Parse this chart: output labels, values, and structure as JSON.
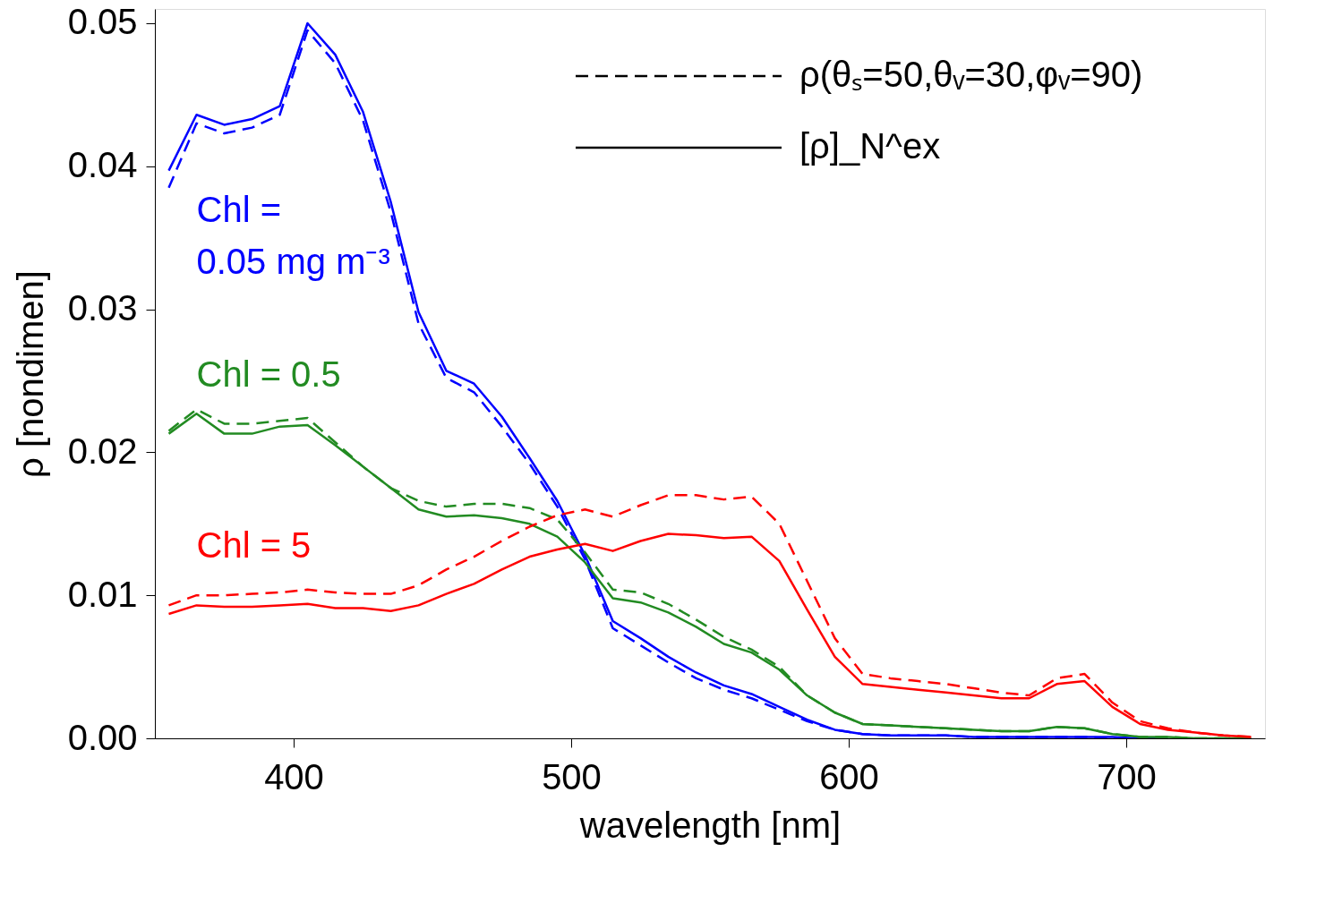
{
  "chart_data": {
    "type": "line",
    "xlabel": "wavelength [nm]",
    "ylabel": "ρ [nondimen]",
    "x": [
      355,
      365,
      375,
      385,
      395,
      405,
      415,
      425,
      435,
      445,
      455,
      465,
      475,
      485,
      495,
      505,
      515,
      525,
      535,
      545,
      555,
      565,
      575,
      585,
      595,
      605,
      615,
      625,
      635,
      645,
      655,
      665,
      675,
      685,
      695,
      705,
      715,
      725,
      735,
      745
    ],
    "series": [
      {
        "color": "#0000ff",
        "line_style": "dashed",
        "values": [
          0.0385,
          0.043,
          0.0423,
          0.0427,
          0.0436,
          0.0495,
          0.0472,
          0.0432,
          0.0368,
          0.029,
          0.0252,
          0.0242,
          0.0218,
          0.0192,
          0.0162,
          0.0125,
          0.0077,
          0.0065,
          0.0053,
          0.0042,
          0.0034,
          0.0028,
          0.002,
          0.0012,
          0.0006,
          0.0003,
          0.0002,
          0.0002,
          0.0002,
          0.0001,
          0.0001,
          0.0001,
          0.0001,
          0.0001,
          0.0,
          0.0,
          0.0,
          null,
          null,
          null
        ]
      },
      {
        "name": "Chl =\n0.05 mg m⁻³",
        "color": "#0000ff",
        "line_style": "solid",
        "values": [
          0.0397,
          0.0436,
          0.0429,
          0.0433,
          0.0442,
          0.05,
          0.0478,
          0.0438,
          0.0375,
          0.0298,
          0.0257,
          0.0248,
          0.0225,
          0.0196,
          0.0166,
          0.0128,
          0.0082,
          0.007,
          0.0057,
          0.0046,
          0.0037,
          0.0031,
          0.0022,
          0.0013,
          0.0006,
          0.0003,
          0.0002,
          0.0002,
          0.0002,
          0.0001,
          0.0001,
          0.0001,
          0.0001,
          0.0001,
          0.0001,
          0.0,
          0.0,
          null,
          null,
          null
        ]
      },
      {
        "color": "#228b22",
        "line_style": "dashed",
        "values": [
          0.0215,
          0.023,
          0.022,
          0.022,
          0.0222,
          0.0224,
          0.0207,
          0.019,
          0.0175,
          0.0166,
          0.0162,
          0.0164,
          0.0164,
          0.0161,
          0.0153,
          0.013,
          0.0104,
          0.0102,
          0.0094,
          0.0083,
          0.0071,
          0.0062,
          0.005,
          0.003,
          0.0018,
          0.001,
          0.0009,
          0.0008,
          0.0007,
          0.0006,
          0.0005,
          0.0005,
          0.0008,
          0.0007,
          0.0003,
          0.0001,
          0.0001,
          0.0,
          0.0,
          0.0
        ]
      },
      {
        "name": "Chl = 0.5",
        "color": "#228b22",
        "line_style": "solid",
        "values": [
          0.0213,
          0.0227,
          0.0213,
          0.0213,
          0.0218,
          0.0219,
          0.0205,
          0.019,
          0.0175,
          0.016,
          0.0155,
          0.0156,
          0.0154,
          0.015,
          0.0141,
          0.0123,
          0.0098,
          0.0095,
          0.0088,
          0.0078,
          0.0066,
          0.006,
          0.0048,
          0.003,
          0.0018,
          0.001,
          0.0009,
          0.0008,
          0.0007,
          0.0006,
          0.0005,
          0.0005,
          0.0008,
          0.0007,
          0.0003,
          0.0001,
          0.0001,
          0.0,
          0.0,
          0.0
        ]
      },
      {
        "color": "#ff0000",
        "line_style": "dashed",
        "values": [
          0.0093,
          0.01,
          0.01,
          0.0101,
          0.0102,
          0.0104,
          0.0102,
          0.0101,
          0.0101,
          0.0107,
          0.0118,
          0.0127,
          0.0138,
          0.0148,
          0.0156,
          0.016,
          0.0155,
          0.0163,
          0.017,
          0.017,
          0.0167,
          0.0169,
          0.015,
          0.011,
          0.007,
          0.0045,
          0.0042,
          0.004,
          0.0038,
          0.0035,
          0.0032,
          0.003,
          0.0042,
          0.0045,
          0.0025,
          0.0012,
          0.0007,
          0.0004,
          0.0002,
          0.0001
        ]
      },
      {
        "name": "Chl = 5",
        "color": "#ff0000",
        "line_style": "solid",
        "values": [
          0.0087,
          0.0093,
          0.0092,
          0.0092,
          0.0093,
          0.0094,
          0.0091,
          0.0091,
          0.0089,
          0.0093,
          0.0101,
          0.0108,
          0.0118,
          0.0127,
          0.0132,
          0.0136,
          0.0131,
          0.0138,
          0.0143,
          0.0142,
          0.014,
          0.0141,
          0.0124,
          0.009,
          0.0057,
          0.0038,
          0.0036,
          0.0034,
          0.0032,
          0.003,
          0.0028,
          0.0028,
          0.0038,
          0.004,
          0.0022,
          0.001,
          0.0006,
          0.0004,
          0.0002,
          0.0001
        ]
      }
    ],
    "xlim": [
      350,
      750
    ],
    "xticks": [
      400,
      500,
      600,
      700
    ],
    "ylim": [
      0,
      0.051
    ],
    "yticks": [
      {
        "value": 0,
        "label": "0.00"
      },
      {
        "value": 0.01,
        "label": "0.01"
      },
      {
        "value": 0.02,
        "label": "0.02"
      },
      {
        "value": 0.03,
        "label": "0.03"
      },
      {
        "value": 0.04,
        "label": "0.04"
      },
      {
        "value": 0.05,
        "label": "0.05"
      }
    ],
    "grid": false,
    "annotations": [
      "ρ(θₛ=50,θᵥ=30,φᵥ=90)",
      "[ρ]_N^ex"
    ]
  }
}
